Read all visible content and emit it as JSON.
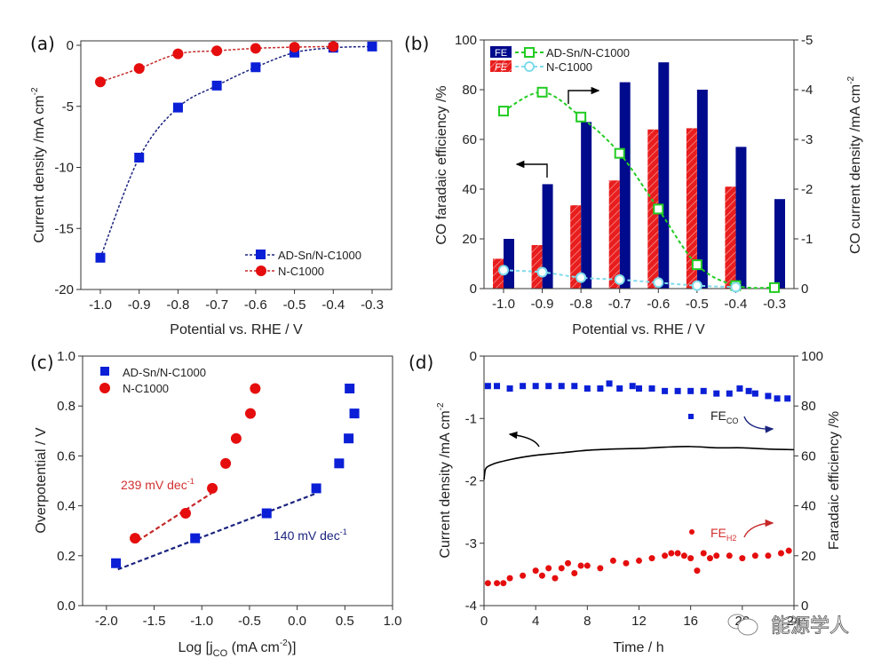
{
  "watermark": {
    "icon": "wechat-icon",
    "text": "能源学人"
  },
  "chart_data": [
    {
      "panel": "(a)",
      "type": "line",
      "title": "",
      "xlabel": "Potential vs. RHE / V",
      "ylabel": "Current density /mA cm",
      "ylabel_sup": "-2",
      "xlim": [
        -1.05,
        -0.25
      ],
      "ylim": [
        -20,
        0.7
      ],
      "xticks": [
        -1.0,
        -0.9,
        -0.8,
        -0.7,
        -0.6,
        -0.5,
        -0.4,
        -0.3
      ],
      "xtick_labels": [
        "-1.0",
        "-0.9",
        "-0.8",
        "-0.7",
        "-0.6",
        "-0.5",
        "-0.4",
        "-0.3"
      ],
      "yticks": [
        0,
        -5,
        -10,
        -15,
        -20
      ],
      "ytick_labels": [
        "0",
        "-5",
        "-10",
        "-15",
        "-20"
      ],
      "legend": "bottom-right",
      "series": [
        {
          "name": "AD-Sn/N-C1000",
          "marker": "square",
          "color": "#0a1fd6",
          "line_color": "#1a237e",
          "x": [
            -1.0,
            -0.9,
            -0.8,
            -0.7,
            -0.6,
            -0.5,
            -0.4,
            -0.3
          ],
          "y": [
            -17.4,
            -9.2,
            -5.1,
            -3.3,
            -1.8,
            -0.6,
            -0.2,
            -0.1
          ]
        },
        {
          "name": "N-C1000",
          "marker": "circle",
          "color": "#e50d0d",
          "line_color": "#c62828",
          "x": [
            -1.0,
            -0.9,
            -0.8,
            -0.7,
            -0.6,
            -0.5,
            -0.4
          ],
          "y": [
            -3.0,
            -1.9,
            -0.7,
            -0.45,
            -0.25,
            -0.15,
            -0.1
          ]
        }
      ]
    },
    {
      "panel": "(b)",
      "type": "bar",
      "title": "",
      "xlabel": "Potential vs. RHE / V",
      "ylabel": "CO faradaic efficiency /%",
      "y2label": "CO current density /mA cm",
      "y2label_sup": "-2",
      "categories": [
        "-1.0",
        "-0.9",
        "-0.8",
        "-0.7",
        "-0.6",
        "-0.5",
        "-0.4",
        "-0.3"
      ],
      "x": [
        -1.0,
        -0.9,
        -0.8,
        -0.7,
        -0.6,
        -0.5,
        -0.4,
        -0.3
      ],
      "xlim": [
        -1.085,
        -0.215
      ],
      "ylim": [
        0,
        100
      ],
      "y2lim": [
        0,
        -5
      ],
      "yticks": [
        0,
        20,
        40,
        60,
        80,
        100
      ],
      "ytick_labels": [
        "0",
        "20",
        "40",
        "60",
        "80",
        "100"
      ],
      "y2ticks": [
        0,
        -1,
        -2,
        -3,
        -4,
        -5
      ],
      "y2tick_labels": [
        "0",
        "-1",
        "-2",
        "-3",
        "-4",
        "-5"
      ],
      "legend": "top-left",
      "legend_entries": [
        {
          "swatch": "FE",
          "name": "AD-Sn/N-C1000"
        },
        {
          "swatch": "FE",
          "name": "N-C1000"
        }
      ],
      "bar_series": [
        {
          "name": "FE AD-Sn/N-C1000",
          "color": "#000a8c",
          "axis": "left",
          "values": [
            20,
            42,
            67,
            83,
            91,
            80,
            57,
            36
          ]
        },
        {
          "name": "FE N-C1000",
          "color": "#e81e1e",
          "hatch": true,
          "axis": "left",
          "values": [
            12,
            17.5,
            33.5,
            43.5,
            64,
            64.5,
            41,
            null
          ]
        }
      ],
      "line_series": [
        {
          "name": "AD-Sn/N-C1000",
          "color": "#22cc22",
          "marker": "open-square",
          "axis": "right",
          "x": [
            -1.0,
            -0.9,
            -0.8,
            -0.7,
            -0.6,
            -0.5,
            -0.4,
            -0.3
          ],
          "y": [
            -3.57,
            -3.95,
            -3.45,
            -2.72,
            -1.6,
            -0.48,
            -0.06,
            -0.02
          ]
        },
        {
          "name": "N-C1000",
          "color": "#7fdcea",
          "marker": "open-circle",
          "axis": "right",
          "x": [
            -1.0,
            -0.9,
            -0.8,
            -0.7,
            -0.6,
            -0.5,
            -0.4
          ],
          "y": [
            -0.37,
            -0.33,
            -0.22,
            -0.18,
            -0.12,
            -0.06,
            -0.03
          ]
        }
      ],
      "annotations": [
        {
          "type": "arrow",
          "direction": "left",
          "meaning": "left axis (FE bars)"
        },
        {
          "type": "arrow",
          "direction": "right",
          "meaning": "right axis (CO current density)"
        }
      ]
    },
    {
      "panel": "(c)",
      "type": "scatter",
      "title": "",
      "xlabel": "Log [j",
      "xlabel_sub": "CO",
      "xlabel_tail": " (mA cm",
      "xlabel_sup": "-2",
      "xlabel_end": ")]",
      "ylabel": "Overpotential / V",
      "xlim": [
        -2.25,
        1.0
      ],
      "ylim": [
        0.0,
        1.0
      ],
      "xticks": [
        -2.0,
        -1.5,
        -1.0,
        -0.5,
        0.0,
        0.5,
        1.0
      ],
      "xtick_labels": [
        "-2.0",
        "-1.5",
        "-1.0",
        "-0.5",
        "0.0",
        "0.5",
        "1.0"
      ],
      "yticks": [
        0.0,
        0.2,
        0.4,
        0.6,
        0.8,
        1.0
      ],
      "ytick_labels": [
        "0.0",
        "0.2",
        "0.4",
        "0.6",
        "0.8",
        "1.0"
      ],
      "legend": "top-left",
      "series": [
        {
          "name": "AD-Sn/N-C1000",
          "marker": "square",
          "color": "#0a1fd6",
          "x": [
            -1.9,
            -1.07,
            -0.32,
            0.2,
            0.44,
            0.54,
            0.6,
            0.55
          ],
          "y": [
            0.17,
            0.27,
            0.37,
            0.47,
            0.57,
            0.67,
            0.77,
            0.87
          ]
        },
        {
          "name": "N-C1000",
          "marker": "circle",
          "color": "#e50d0d",
          "x": [
            -1.7,
            -1.17,
            -0.89,
            -0.75,
            -0.64,
            -0.49,
            -0.44
          ],
          "y": [
            0.27,
            0.37,
            0.47,
            0.57,
            0.67,
            0.77,
            0.87
          ]
        }
      ],
      "fit_lines": [
        {
          "name": "Tafel N-C1000",
          "color": "#c62828",
          "x": [
            -1.67,
            -0.9
          ],
          "y": [
            0.26,
            0.45
          ],
          "label": "239 mV dec",
          "label_sup": "-1"
        },
        {
          "name": "Tafel AD-Sn/N-C1000",
          "color": "#1a237e",
          "x": [
            -1.88,
            0.2
          ],
          "y": [
            0.145,
            0.45
          ],
          "label": "140 mV dec",
          "label_sup": "-1"
        }
      ]
    },
    {
      "panel": "(d)",
      "type": "line",
      "title": "",
      "xlabel": "Time / h",
      "ylabel": "Current density /mA cm",
      "ylabel_sup": "-2",
      "y2label": "Faradaic efficiency /%",
      "xlim": [
        0,
        24
      ],
      "ylim": [
        -4,
        0
      ],
      "y2lim": [
        0,
        100
      ],
      "xticks": [
        0,
        4,
        8,
        12,
        16,
        20,
        24
      ],
      "xtick_labels": [
        "0",
        "4",
        "8",
        "12",
        "16",
        "20",
        "24"
      ],
      "yticks": [
        0,
        -1,
        -2,
        -3,
        -4
      ],
      "ytick_labels": [
        "0",
        "-1",
        "-2",
        "-3",
        "-4"
      ],
      "y2ticks": [
        0,
        20,
        40,
        60,
        80,
        100
      ],
      "y2tick_labels": [
        "0",
        "20",
        "40",
        "60",
        "80",
        "100"
      ],
      "series": [
        {
          "name": "Current density",
          "color": "#000000",
          "axis": "left",
          "kind": "line",
          "x": [
            0,
            0.1,
            0.3,
            0.6,
            1,
            2,
            3,
            4,
            6,
            8,
            10,
            12,
            14,
            16,
            18,
            20,
            22,
            24
          ],
          "y": [
            -1.98,
            -1.82,
            -1.77,
            -1.74,
            -1.71,
            -1.66,
            -1.62,
            -1.59,
            -1.55,
            -1.51,
            -1.49,
            -1.48,
            -1.46,
            -1.45,
            -1.47,
            -1.47,
            -1.49,
            -1.5
          ]
        },
        {
          "name": "FE_CO",
          "label": "FE",
          "label_sub": "CO",
          "color": "#0a1fd6",
          "marker": "square",
          "axis": "right",
          "x": [
            0.3,
            1,
            2,
            3,
            4,
            5,
            6,
            7,
            8,
            9,
            9.7,
            10.5,
            11.5,
            12,
            13,
            14,
            15,
            16,
            17,
            18,
            19,
            19.8,
            20.5,
            21,
            22,
            22.7,
            23.5
          ],
          "y": [
            88,
            88,
            87,
            88,
            88,
            88,
            88,
            88,
            87,
            87,
            89,
            87,
            88,
            87,
            87,
            86,
            86,
            86,
            86,
            85,
            85,
            87,
            86,
            85,
            84,
            83,
            83
          ]
        },
        {
          "name": "FE_H2",
          "label": "FE",
          "label_sub": "H2",
          "color": "#e50d0d",
          "marker": "circle",
          "axis": "right",
          "x": [
            0.3,
            1,
            1.5,
            2,
            3,
            4,
            4.5,
            5,
            5.5,
            6,
            6.5,
            7,
            7.5,
            8,
            9,
            10,
            11,
            12,
            13,
            14,
            14.5,
            15,
            15.5,
            16,
            16.5,
            17,
            17.5,
            18,
            19,
            20,
            21,
            22,
            23,
            23.6
          ],
          "y": [
            9,
            9,
            9,
            11,
            12,
            14,
            12,
            15,
            11,
            15,
            17,
            13,
            16,
            16,
            15,
            18,
            17,
            18,
            19,
            20,
            21,
            21,
            20,
            19,
            14,
            21,
            19,
            20,
            20,
            19,
            20,
            20,
            21,
            22
          ]
        }
      ],
      "annotations": [
        {
          "type": "arrow",
          "direction": "left",
          "meaning": "current density on left axis"
        },
        {
          "type": "arrow",
          "direction": "right",
          "color": "#1a237e",
          "meaning": "FE_CO on right axis"
        },
        {
          "type": "arrow",
          "direction": "right",
          "color": "#c62828",
          "meaning": "FE_H2 on right axis"
        }
      ]
    }
  ]
}
